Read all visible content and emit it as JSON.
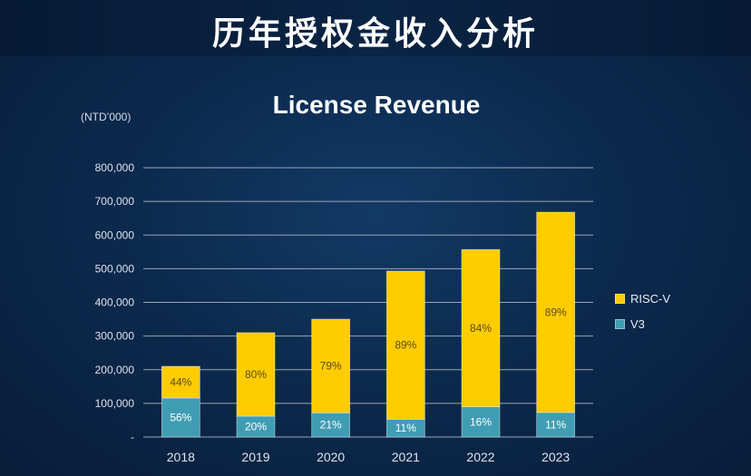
{
  "page": {
    "title": "历年授权金收入分析"
  },
  "colors": {
    "risc_v": "#ffcc00",
    "v3": "#3f9db3",
    "grid": "#9aa6b6",
    "text": "#dce4ee"
  },
  "chart_data": {
    "type": "bar",
    "stacked": true,
    "title": "License Revenue",
    "unit": "(NTD’000)",
    "categories": [
      "2018",
      "2019",
      "2020",
      "2021",
      "2022",
      "2023"
    ],
    "series": [
      {
        "name": "V3",
        "values": [
          116000,
          62000,
          72000,
          53000,
          90000,
          73000
        ],
        "labels": [
          "56%",
          "20%",
          "21%",
          "11%",
          "16%",
          "11%"
        ]
      },
      {
        "name": "RISC-V",
        "values": [
          94000,
          248000,
          278000,
          440000,
          467000,
          595000
        ],
        "labels": [
          "44%",
          "80%",
          "79%",
          "89%",
          "84%",
          "89%"
        ]
      }
    ],
    "ylim": [
      0,
      800000
    ],
    "yticks": [
      "-",
      "100,000",
      "200,000",
      "300,000",
      "400,000",
      "500,000",
      "600,000",
      "700,000",
      "800,000"
    ],
    "grid": true,
    "legend_position": "right"
  }
}
